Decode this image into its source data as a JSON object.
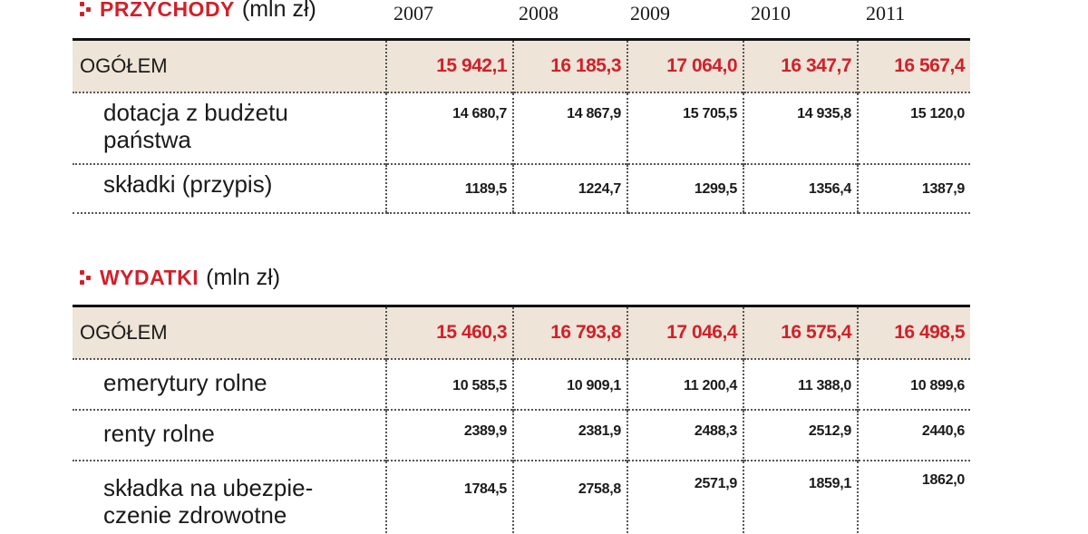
{
  "years": [
    "2007",
    "2008",
    "2009",
    "2010",
    "2011"
  ],
  "revenue": {
    "title": "PRZYCHODY",
    "unit": "(mln zł)",
    "total": {
      "label": "OGÓŁEM",
      "values": [
        "15 942,1",
        "16 185,3",
        "17 064,0",
        "16 347,7",
        "16 567,4"
      ]
    },
    "rows": [
      {
        "label_line1": "dotacja z budżetu",
        "label_line2": "państwa",
        "values": [
          "14 680,7",
          "14 867,9",
          "15 705,5",
          "14 935,8",
          "15 120,0"
        ]
      },
      {
        "label_line1": "składki (przypis)",
        "label_line2": "",
        "values": [
          "1189,5",
          "1224,7",
          "1299,5",
          "1356,4",
          "1387,9"
        ]
      }
    ]
  },
  "expenses": {
    "title": "WYDATKI",
    "unit": "(mln zł)",
    "total": {
      "label": "OGÓŁEM",
      "values": [
        "15 460,3",
        "16 793,8",
        "17 046,4",
        "16 575,4",
        "16 498,5"
      ]
    },
    "rows": [
      {
        "label_line1": "emerytury rolne",
        "label_line2": "",
        "values": [
          "10 585,5",
          "10 909,1",
          "11 200,4",
          "11 388,0",
          "10 899,6"
        ]
      },
      {
        "label_line1": "renty rolne",
        "label_line2": "",
        "values": [
          "2389,9",
          "2381,9",
          "2488,3",
          "2512,9",
          "2440,6"
        ]
      },
      {
        "label_line1": "składka na ubezpie-",
        "label_line2": "czenie zdrowotne",
        "values": [
          "1784,5",
          "2758,8",
          "2571,9",
          "1859,1",
          "1862,0"
        ]
      }
    ]
  },
  "colors": {
    "accent": "#d0212b",
    "total_bg": "#eee4d7"
  }
}
